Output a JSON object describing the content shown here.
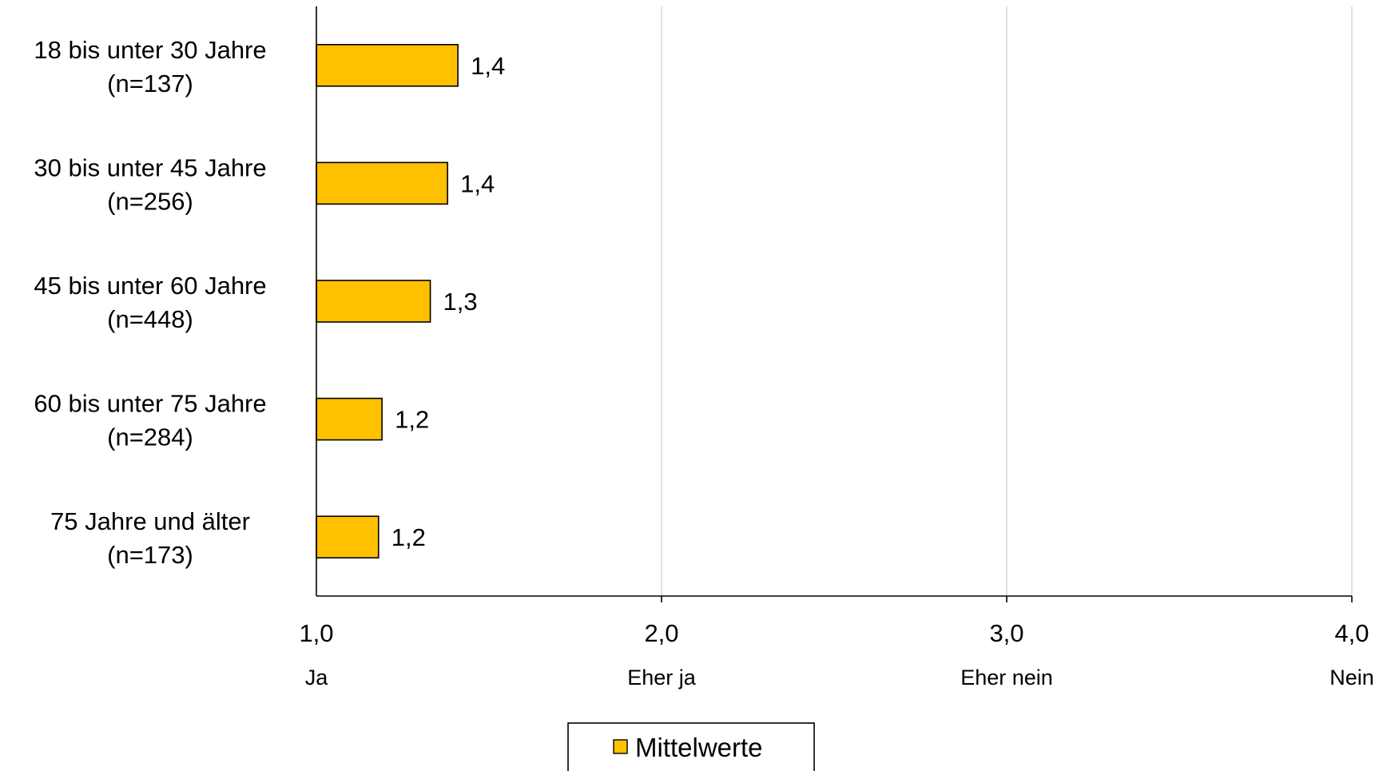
{
  "chart_data": {
    "type": "bar",
    "orientation": "horizontal",
    "categories": [
      {
        "line1": "18 bis unter 30 Jahre",
        "line2": "(n=137)"
      },
      {
        "line1": "30 bis unter 45 Jahre",
        "line2": "(n=256)"
      },
      {
        "line1": "45 bis unter 60 Jahre",
        "line2": "(n=448)"
      },
      {
        "line1": "60 bis unter 75 Jahre",
        "line2": "(n=284)"
      },
      {
        "line1": "75 Jahre und älter",
        "line2": "(n=173)"
      }
    ],
    "series": [
      {
        "name": "Mittelwerte",
        "values": [
          1.41,
          1.38,
          1.33,
          1.19,
          1.18
        ],
        "labels": [
          "1,4",
          "1,4",
          "1,3",
          "1,2",
          "1,2"
        ],
        "color": "#FFC000"
      }
    ],
    "xlim": [
      1.0,
      4.0
    ],
    "ticks": [
      {
        "value": 1.0,
        "label": "1,0",
        "scale_label": "Ja"
      },
      {
        "value": 2.0,
        "label": "2,0",
        "scale_label": "Eher ja"
      },
      {
        "value": 3.0,
        "label": "3,0",
        "scale_label": "Eher nein"
      },
      {
        "value": 4.0,
        "label": "4,0",
        "scale_label": "Nein"
      }
    ],
    "grid": true,
    "legend_position": "bottom-center",
    "colors": {
      "bar": "#FFC000",
      "bar_stroke": "#000000",
      "grid": "#D9D9D9",
      "axis": "#000000"
    }
  }
}
